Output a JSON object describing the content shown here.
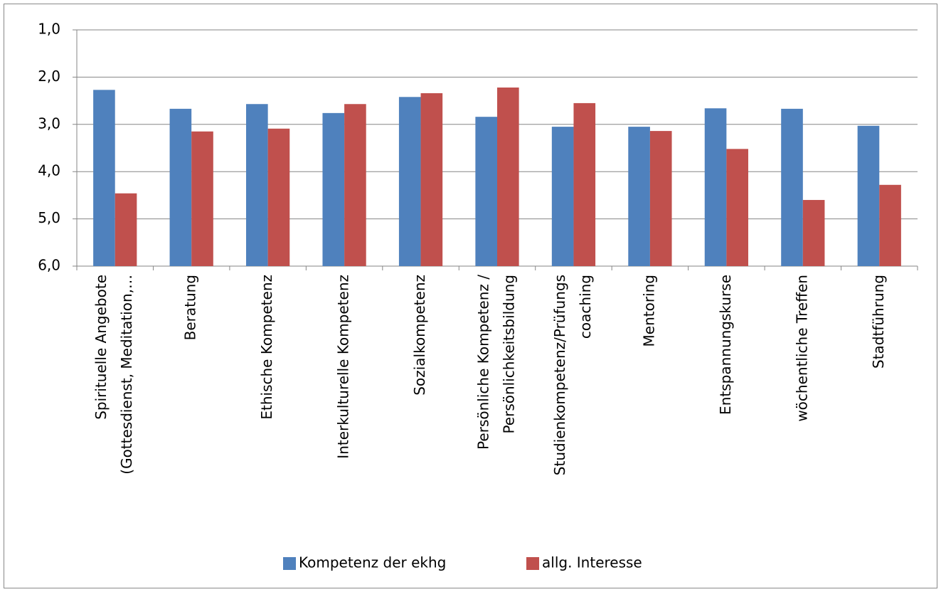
{
  "chart_data": {
    "type": "bar",
    "categories": [
      [
        "Spirituelle Angebote",
        "(Gottesdienst, Meditation,…"
      ],
      [
        "Beratung"
      ],
      [
        "Ethische Kompetenz"
      ],
      [
        "Interkulturelle Kompetenz"
      ],
      [
        "Sozialkompetenz"
      ],
      [
        "Persönliche Kompetenz /",
        "Persönlichkeitsbildung"
      ],
      [
        "Studienkompetenz/Prüfungs",
        "coaching"
      ],
      [
        "Mentoring"
      ],
      [
        "Entspannungskurse"
      ],
      [
        "wöchentliche Treffen"
      ],
      [
        "Stadtführung"
      ]
    ],
    "series": [
      {
        "name": "Kompetenz der ekhg",
        "color": "#4f81bd",
        "values": [
          2.27,
          2.67,
          2.57,
          2.76,
          2.42,
          2.84,
          3.05,
          3.05,
          2.66,
          2.67,
          3.03
        ]
      },
      {
        "name": "allg. Interesse",
        "color": "#c0504d",
        "values": [
          4.46,
          3.15,
          3.09,
          2.57,
          2.34,
          2.22,
          2.55,
          3.14,
          3.52,
          4.6,
          4.28
        ]
      }
    ],
    "ylim": [
      6,
      1
    ],
    "yticks": [
      {
        "value": 1,
        "label": "1,0"
      },
      {
        "value": 2,
        "label": "2,0"
      },
      {
        "value": 3,
        "label": "3,0"
      },
      {
        "value": 4,
        "label": "4,0"
      },
      {
        "value": 5,
        "label": "5,0"
      },
      {
        "value": 6,
        "label": "6,0"
      }
    ],
    "grid": true,
    "legend": "bottom"
  }
}
